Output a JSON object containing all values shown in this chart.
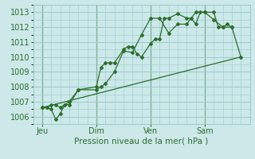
{
  "bg_color": "#cce8e8",
  "grid_color": "#99cccc",
  "line_color": "#2d6e2d",
  "marker_color": "#2d6e2d",
  "xlabel": "Pression niveau de la mer( hPa )",
  "ylim": [
    1005.5,
    1013.5
  ],
  "yticks": [
    1006,
    1007,
    1008,
    1009,
    1010,
    1011,
    1012,
    1013
  ],
  "xlim": [
    0,
    24
  ],
  "day_labels": [
    "Jeu",
    "Dim",
    "Ven",
    "Sam"
  ],
  "day_positions": [
    1,
    7,
    13,
    19
  ],
  "vline_positions": [
    1,
    7,
    13,
    19
  ],
  "series1_x": [
    1.0,
    1.5,
    2.0,
    2.5,
    3.0,
    4.0,
    5.0,
    7.0,
    7.5,
    8.0,
    8.5,
    9.0,
    10.0,
    10.5,
    11.0,
    11.5,
    12.0,
    13.0,
    13.5,
    14.0,
    14.5,
    15.0,
    16.0,
    17.0,
    17.5,
    18.0,
    18.5,
    19.0,
    20.0,
    20.5,
    21.0,
    21.5,
    22.0
  ],
  "series1_y": [
    1006.6,
    1006.6,
    1006.8,
    1006.8,
    1006.6,
    1007.0,
    1007.8,
    1008.0,
    1009.3,
    1009.6,
    1009.6,
    1009.6,
    1010.5,
    1010.7,
    1010.7,
    1010.2,
    1010.0,
    1010.9,
    1011.2,
    1011.2,
    1012.6,
    1012.6,
    1012.9,
    1012.6,
    1012.6,
    1012.2,
    1013.0,
    1013.0,
    1013.0,
    1012.0,
    1012.0,
    1012.2,
    1012.0
  ],
  "series2_x": [
    1.0,
    1.5,
    2.0,
    2.5,
    3.0,
    3.5,
    4.0,
    5.0,
    7.0,
    7.5,
    8.0,
    9.0,
    10.0,
    11.0,
    12.0,
    13.0,
    14.0,
    15.0,
    16.0,
    17.0,
    18.0,
    19.0,
    20.0,
    21.0,
    22.0,
    23.0
  ],
  "series2_y": [
    1006.6,
    1006.6,
    1006.5,
    1005.8,
    1006.2,
    1006.8,
    1006.8,
    1007.8,
    1007.8,
    1008.0,
    1008.2,
    1009.0,
    1010.4,
    1010.3,
    1011.5,
    1012.6,
    1012.6,
    1011.6,
    1012.2,
    1012.2,
    1013.0,
    1013.0,
    1012.5,
    1012.0,
    1012.0,
    1010.0
  ],
  "series3_x": [
    1.0,
    23.0
  ],
  "series3_y": [
    1006.6,
    1010.0
  ]
}
